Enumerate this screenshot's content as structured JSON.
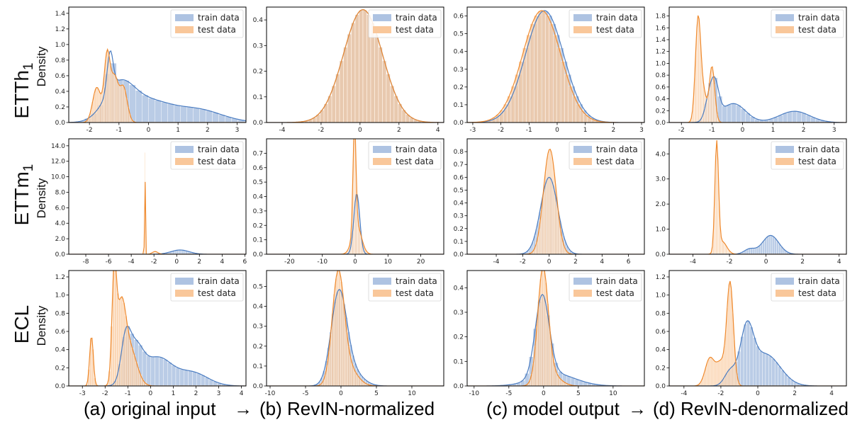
{
  "colors": {
    "train_fill": "#aec3e2",
    "train_line": "#4a7cc1",
    "test_fill": "#f9c79a",
    "test_line": "#ef8a2e"
  },
  "row_labels": [
    {
      "main": "ETTh",
      "sub": "1"
    },
    {
      "main": "ETTm",
      "sub": "1"
    },
    {
      "main": "ECL",
      "sub": ""
    }
  ],
  "y_axis_label": "Density",
  "legend": {
    "train": "train data",
    "test": "test data"
  },
  "captions": {
    "a": "(a) original input",
    "arrow1": "→",
    "b": "(b) RevIN-normalized",
    "c": "(c) model output",
    "arrow2": "→",
    "d": "(d) RevIN-denormalized"
  },
  "chart_data": [
    {
      "type": "histogram-kde",
      "row": 0,
      "col": 0,
      "xlim": [
        -2.7,
        3.3
      ],
      "ylim": [
        0,
        1.48
      ],
      "xticks": [
        "-2",
        "-1",
        "0",
        "1",
        "2",
        "3"
      ],
      "yticks": [
        "0.0",
        "0.2",
        "0.4",
        "0.6",
        "0.8",
        "1.0",
        "1.2",
        "1.4"
      ],
      "train": [
        [
          -1.3,
          0.1,
          0.5
        ],
        [
          -1.0,
          0.5,
          0.45
        ],
        [
          0.0,
          0.7,
          0.24
        ],
        [
          1.6,
          0.85,
          0.17
        ]
      ],
      "test": [
        [
          -1.75,
          0.14,
          0.45
        ],
        [
          -1.4,
          0.1,
          0.85
        ],
        [
          -1.15,
          0.12,
          0.55
        ],
        [
          -0.85,
          0.13,
          0.45
        ]
      ]
    },
    {
      "type": "histogram-kde",
      "row": 0,
      "col": 1,
      "xlim": [
        -4.8,
        4.3
      ],
      "ylim": [
        0,
        0.45
      ],
      "xticks": [
        "-4",
        "-2",
        "0",
        "2",
        "4"
      ],
      "yticks": [
        "0.0",
        "0.1",
        "0.2",
        "0.3",
        "0.4"
      ],
      "train": [
        [
          0.15,
          1.0,
          0.44
        ]
      ],
      "test": [
        [
          0.15,
          1.0,
          0.44
        ]
      ]
    },
    {
      "type": "histogram-kde",
      "row": 0,
      "col": 2,
      "xlim": [
        -3.2,
        3.1
      ],
      "ylim": [
        0,
        0.65
      ],
      "xticks": [
        "-3",
        "-2",
        "-1",
        "0",
        "1",
        "2",
        "3"
      ],
      "yticks": [
        "0.0",
        "0.1",
        "0.2",
        "0.3",
        "0.4",
        "0.5",
        "0.6"
      ],
      "train": [
        [
          -0.45,
          0.68,
          0.63
        ]
      ],
      "test": [
        [
          -0.55,
          0.68,
          0.63
        ]
      ]
    },
    {
      "type": "histogram-kde",
      "row": 0,
      "col": 3,
      "xlim": [
        -2.4,
        3.4
      ],
      "ylim": [
        0,
        1.95
      ],
      "xticks": [
        "-2",
        "-1",
        "0",
        "1",
        "2",
        "3"
      ],
      "yticks": [
        "0.0",
        "0.2",
        "0.4",
        "0.6",
        "0.8",
        "1.0",
        "1.2",
        "1.4",
        "1.6",
        "1.8"
      ],
      "train": [
        [
          -1.1,
          0.13,
          0.35
        ],
        [
          -0.9,
          0.13,
          0.55
        ],
        [
          -0.3,
          0.4,
          0.32
        ],
        [
          1.7,
          0.5,
          0.19
        ]
      ],
      "test": [
        [
          -1.45,
          0.09,
          1.8
        ],
        [
          -1.0,
          0.09,
          0.95
        ],
        [
          -1.25,
          0.08,
          0.4
        ]
      ]
    },
    {
      "type": "histogram-kde",
      "row": 1,
      "col": 0,
      "xlim": [
        -9.5,
        6.1
      ],
      "ylim": [
        0,
        14.9
      ],
      "xticks": [
        "-8",
        "-6",
        "-4",
        "-2",
        "0",
        "2",
        "4",
        "6"
      ],
      "yticks": [
        "0.0",
        "2.0",
        "4.0",
        "6.0",
        "8.0",
        "10.0",
        "12.0",
        "14.0"
      ],
      "train": [
        [
          0.3,
          0.8,
          0.55
        ]
      ],
      "test": [
        [
          -2.8,
          0.03,
          14.2
        ],
        [
          -1.9,
          0.25,
          0.35
        ]
      ]
    },
    {
      "type": "histogram-kde",
      "row": 1,
      "col": 1,
      "xlim": [
        -27,
        27
      ],
      "ylim": [
        0,
        0.8
      ],
      "xticks": [
        "-20",
        "-10",
        "0",
        "10",
        "20"
      ],
      "yticks": [
        "0.0",
        "0.1",
        "0.2",
        "0.3",
        "0.4",
        "0.5",
        "0.6",
        "0.7"
      ],
      "train": [
        [
          0.5,
          0.9,
          0.42
        ]
      ],
      "test": [
        [
          -0.2,
          0.45,
          0.75
        ],
        [
          0.5,
          1.4,
          0.2
        ]
      ]
    },
    {
      "type": "histogram-kde",
      "row": 1,
      "col": 2,
      "xlim": [
        -6.2,
        7.2
      ],
      "ylim": [
        0,
        0.9
      ],
      "xticks": [
        "-4",
        "-2",
        "0",
        "2",
        "4",
        "6"
      ],
      "yticks": [
        "0.0",
        "0.1",
        "0.2",
        "0.3",
        "0.4",
        "0.5",
        "0.6",
        "0.7",
        "0.8"
      ],
      "train": [
        [
          0.0,
          0.65,
          0.6
        ]
      ],
      "test": [
        [
          0.05,
          0.48,
          0.82
        ]
      ]
    },
    {
      "type": "histogram-kde",
      "row": 1,
      "col": 3,
      "xlim": [
        -5.3,
        4.4
      ],
      "ylim": [
        0,
        4.6
      ],
      "xticks": [
        "-4",
        "-2",
        "0",
        "2",
        "4"
      ],
      "yticks": [
        "0.0",
        "1.0",
        "2.0",
        "3.0",
        "4.0"
      ],
      "train": [
        [
          0.25,
          0.45,
          0.75
        ],
        [
          -0.9,
          0.3,
          0.2
        ]
      ],
      "test": [
        [
          -2.7,
          0.1,
          4.3
        ],
        [
          -2.4,
          0.25,
          0.5
        ]
      ]
    },
    {
      "type": "histogram-kde",
      "row": 2,
      "col": 0,
      "xlim": [
        -3.6,
        4.2
      ],
      "ylim": [
        0,
        1.27
      ],
      "xticks": [
        "-3",
        "-2",
        "-1",
        "0",
        "1",
        "2",
        "3",
        "4"
      ],
      "yticks": [
        "0.0",
        "0.2",
        "0.4",
        "0.6",
        "0.8",
        "1.0",
        "1.2"
      ],
      "train": [
        [
          -1.1,
          0.2,
          0.4
        ],
        [
          -0.7,
          0.35,
          0.4
        ],
        [
          0.3,
          0.6,
          0.3
        ],
        [
          1.8,
          0.7,
          0.15
        ]
      ],
      "test": [
        [
          -2.6,
          0.08,
          0.55
        ],
        [
          -1.6,
          0.1,
          1.1
        ],
        [
          -1.3,
          0.2,
          0.8
        ],
        [
          -0.9,
          0.3,
          0.4
        ]
      ]
    },
    {
      "type": "histogram-kde",
      "row": 2,
      "col": 1,
      "xlim": [
        -10.5,
        14.5
      ],
      "ylim": [
        0,
        0.58
      ],
      "xticks": [
        "-10",
        "-5",
        "0",
        "5",
        "10"
      ],
      "yticks": [
        "0.0",
        "0.1",
        "0.2",
        "0.3",
        "0.4",
        "0.5"
      ],
      "train": [
        [
          -0.3,
          1.1,
          0.45
        ],
        [
          1.5,
          1.5,
          0.07
        ]
      ],
      "test": [
        [
          -0.4,
          0.85,
          0.55
        ],
        [
          1.2,
          1.2,
          0.08
        ]
      ]
    },
    {
      "type": "histogram-kde",
      "row": 2,
      "col": 2,
      "xlim": [
        -11,
        14.5
      ],
      "ylim": [
        0,
        0.47
      ],
      "xticks": [
        "-10",
        "-5",
        "0",
        "5",
        "10"
      ],
      "yticks": [
        "0.0",
        "0.1",
        "0.2",
        "0.3",
        "0.4"
      ],
      "train": [
        [
          -0.2,
          1.0,
          0.33
        ],
        [
          1.5,
          3.0,
          0.05
        ]
      ],
      "test": [
        [
          -0.1,
          0.75,
          0.45
        ],
        [
          1.0,
          1.3,
          0.05
        ]
      ]
    },
    {
      "type": "histogram-kde",
      "row": 2,
      "col": 3,
      "xlim": [
        -4.8,
        4.8
      ],
      "ylim": [
        0,
        1.27
      ],
      "xticks": [
        "-4",
        "-2",
        "0",
        "2",
        "4"
      ],
      "yticks": [
        "0.0",
        "0.2",
        "0.4",
        "0.6",
        "0.8",
        "1.0",
        "1.2"
      ],
      "train": [
        [
          -0.6,
          0.35,
          0.55
        ],
        [
          0.4,
          0.8,
          0.35
        ],
        [
          -1.5,
          0.3,
          0.15
        ]
      ],
      "test": [
        [
          -1.5,
          0.18,
          1.12
        ],
        [
          -2.6,
          0.25,
          0.3
        ],
        [
          -2.0,
          0.25,
          0.25
        ]
      ]
    }
  ]
}
